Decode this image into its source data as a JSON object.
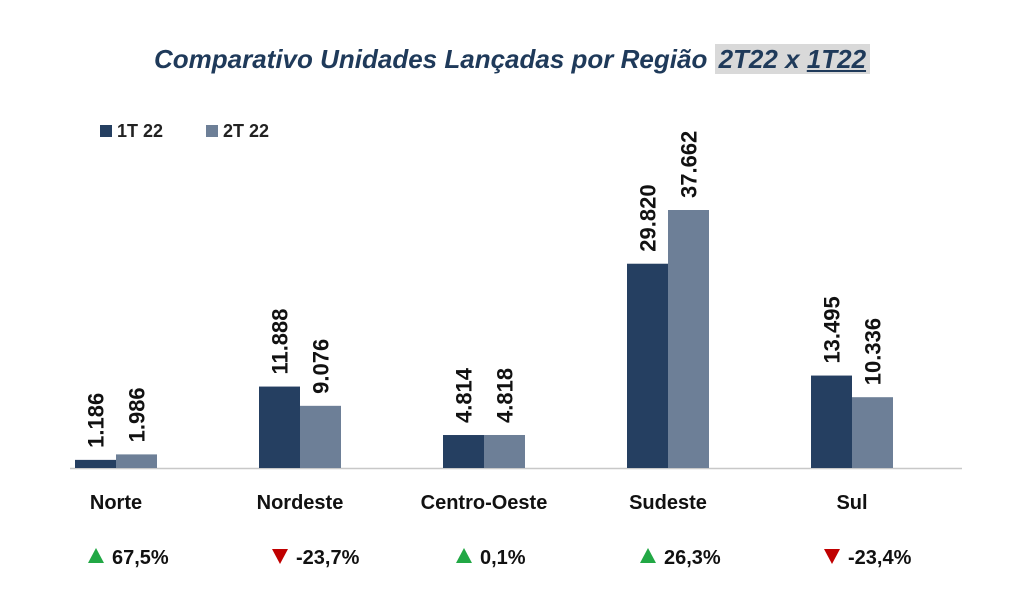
{
  "title": {
    "text": "Comparativo Unidades Lançadas por Região",
    "highlight_a": "2T22",
    "highlight_sep": "x",
    "highlight_b": "1T22"
  },
  "colors": {
    "series_1": "#253f61",
    "series_2": "#6d7f97",
    "title": "#1f3a5a",
    "up": "#22a845",
    "down": "#c00000",
    "axis": "#c8c8c8"
  },
  "chart_data": {
    "type": "bar",
    "categories": [
      "Norte",
      "Nordeste",
      "Centro-Oeste",
      "Sudeste",
      "Sul"
    ],
    "series": [
      {
        "name": "1T 22",
        "values": [
          1186,
          11888,
          4814,
          29820,
          13495
        ],
        "labels": [
          "1.186",
          "11.888",
          "4.814",
          "29.820",
          "13.495"
        ]
      },
      {
        "name": "2T 22",
        "values": [
          1986,
          9076,
          4818,
          37662,
          10336
        ],
        "labels": [
          "1.986",
          "9.076",
          "4.818",
          "37.662",
          "10.336"
        ]
      }
    ],
    "ylim": [
      0,
      37662
    ],
    "legend": "top-left",
    "grid": false,
    "changes": [
      {
        "direction": "up",
        "label": "67,5%"
      },
      {
        "direction": "down",
        "label": "-23,7%"
      },
      {
        "direction": "up",
        "label": "0,1%"
      },
      {
        "direction": "up",
        "label": "26,3%"
      },
      {
        "direction": "down",
        "label": "-23,4%"
      }
    ]
  }
}
